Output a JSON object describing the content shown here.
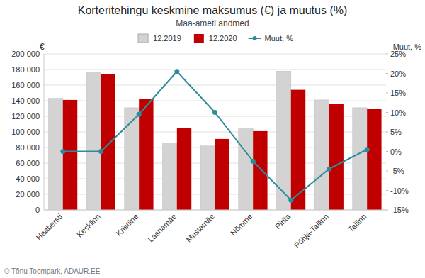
{
  "chart_data": {
    "type": "bar",
    "title": "Korteritehingu keskmine maksumus (€) ja muutus (%)",
    "subtitle": "Maa-ameti andmed",
    "y_label": "€",
    "y2_label": "Muut, %",
    "annotations": [
      "© Tõnu Toompark, ADAUR.EE"
    ],
    "categories": [
      "Haabersti",
      "Kesklinn",
      "Kristiine",
      "Lasnamäe",
      "Mustamäe",
      "Nõmme",
      "Pirita",
      "Põhja-Tallinn",
      "Tallinn"
    ],
    "series": [
      {
        "name": "12.2019",
        "color": "#d3d3d3",
        "values": [
          143000,
          176000,
          131000,
          86000,
          82000,
          104000,
          178000,
          141000,
          131000
        ]
      },
      {
        "name": "12.2020",
        "color": "#c00000",
        "values": [
          141000,
          174000,
          142000,
          105000,
          91000,
          101000,
          154000,
          136000,
          130000
        ]
      },
      {
        "name": "Muut, %",
        "type": "line",
        "axis": "y2",
        "color": "#2e8b9a",
        "marker": "circle",
        "values": [
          0.0,
          0.0,
          9.5,
          20.5,
          10.0,
          -2.5,
          -12.5,
          -4.5,
          0.5
        ]
      }
    ],
    "ylim": [
      0,
      200000
    ],
    "yticks": [
      0,
      {
        "value": 20000,
        "label": "20 000"
      },
      {
        "value": 40000,
        "label": "40 000"
      },
      {
        "value": 60000,
        "label": "60 000"
      },
      {
        "value": 80000,
        "label": "80 000"
      },
      {
        "value": 100000,
        "label": "100 000"
      },
      {
        "value": 120000,
        "label": "120 000"
      },
      {
        "value": 140000,
        "label": "140 000"
      },
      {
        "value": 160000,
        "label": "160 000"
      },
      {
        "value": 180000,
        "label": "180 000"
      },
      {
        "value": 200000,
        "label": "200 000"
      }
    ],
    "y2lim": [
      -15,
      25
    ],
    "y2ticks": [
      {
        "value": -15,
        "label": "-15%"
      },
      {
        "value": -10,
        "label": "-10%"
      },
      {
        "value": -5,
        "label": "-5%"
      },
      {
        "value": 0,
        "label": "0%"
      },
      {
        "value": 5,
        "label": "5%"
      },
      {
        "value": 10,
        "label": "10%"
      },
      {
        "value": 15,
        "label": "15%"
      },
      {
        "value": 20,
        "label": "20%"
      },
      {
        "value": 25,
        "label": "25%"
      }
    ],
    "grid": true,
    "legend": "top"
  }
}
